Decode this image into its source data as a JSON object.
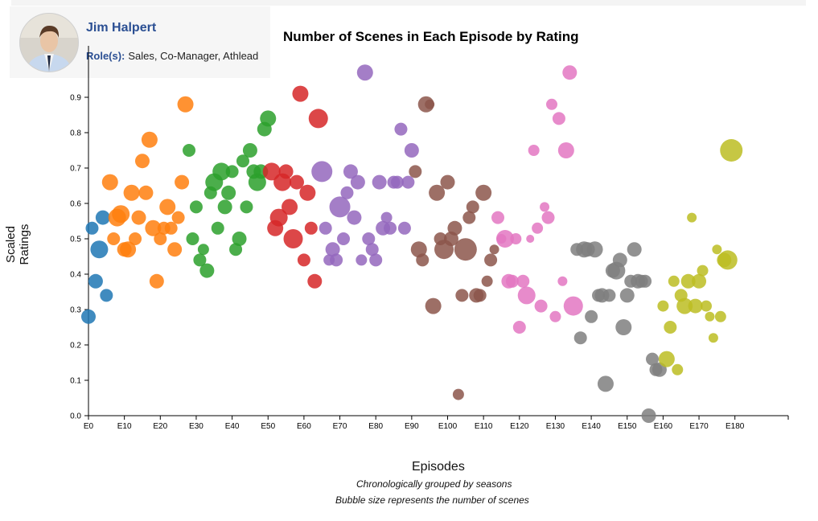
{
  "profile": {
    "name": "Jim Halpert",
    "role_label": "Role(s):",
    "roles": "Sales, Co-Manager, Athlead"
  },
  "chart_data": {
    "type": "scatter",
    "title": "Number of Scenes in Each Episode by Rating",
    "xlabel": "Episodes",
    "ylabel": "Scaled Ratings",
    "notes": [
      "Chronologically grouped by seasons",
      "Bubble size represents the number of scenes"
    ],
    "xlim": [
      0,
      195
    ],
    "ylim": [
      0,
      1.0
    ],
    "x_ticks": [
      0,
      10,
      20,
      30,
      40,
      50,
      60,
      70,
      80,
      90,
      100,
      110,
      120,
      130,
      140,
      150,
      160,
      170,
      180
    ],
    "y_ticks": [
      0,
      0.1,
      0.2,
      0.3,
      0.4,
      0.5,
      0.6,
      0.7,
      0.8,
      0.9
    ],
    "grid": false,
    "series": [
      {
        "color": "#1f77b4",
        "points": [
          [
            0,
            0.28,
            9
          ],
          [
            1,
            0.53,
            8
          ],
          [
            2,
            0.38,
            9
          ],
          [
            3,
            0.47,
            11
          ],
          [
            4,
            0.56,
            9
          ],
          [
            5,
            0.34,
            8
          ]
        ]
      },
      {
        "color": "#ff7f0e",
        "points": [
          [
            6,
            0.66,
            10
          ],
          [
            7,
            0.5,
            8
          ],
          [
            8,
            0.56,
            11
          ],
          [
            9,
            0.57,
            11
          ],
          [
            10,
            0.47,
            9
          ],
          [
            11,
            0.47,
            10
          ],
          [
            12,
            0.63,
            10
          ],
          [
            13,
            0.5,
            8
          ],
          [
            14,
            0.56,
            9
          ],
          [
            15,
            0.72,
            9
          ],
          [
            16,
            0.63,
            9
          ],
          [
            17,
            0.78,
            10
          ],
          [
            18,
            0.53,
            10
          ],
          [
            19,
            0.38,
            9
          ],
          [
            20,
            0.5,
            8
          ],
          [
            21,
            0.53,
            8
          ],
          [
            22,
            0.59,
            10
          ],
          [
            23,
            0.53,
            8
          ],
          [
            24,
            0.47,
            9
          ],
          [
            25,
            0.56,
            8
          ],
          [
            26,
            0.66,
            9
          ],
          [
            27,
            0.88,
            10
          ]
        ]
      },
      {
        "color": "#2ca02c",
        "points": [
          [
            28,
            0.75,
            8
          ],
          [
            29,
            0.5,
            8
          ],
          [
            30,
            0.59,
            8
          ],
          [
            31,
            0.44,
            8
          ],
          [
            32,
            0.47,
            7
          ],
          [
            33,
            0.41,
            9
          ],
          [
            34,
            0.63,
            8
          ],
          [
            35,
            0.66,
            11
          ],
          [
            36,
            0.53,
            8
          ],
          [
            37,
            0.69,
            11
          ],
          [
            38,
            0.59,
            9
          ],
          [
            39,
            0.63,
            9
          ],
          [
            40,
            0.69,
            8
          ],
          [
            41,
            0.47,
            8
          ],
          [
            42,
            0.5,
            9
          ],
          [
            43,
            0.72,
            8
          ],
          [
            44,
            0.59,
            8
          ],
          [
            45,
            0.75,
            9
          ],
          [
            46,
            0.69,
            9
          ],
          [
            47,
            0.66,
            11
          ],
          [
            48,
            0.69,
            9
          ],
          [
            49,
            0.81,
            9
          ],
          [
            50,
            0.84,
            10
          ]
        ]
      },
      {
        "color": "#d62728",
        "points": [
          [
            51,
            0.69,
            11
          ],
          [
            52,
            0.53,
            10
          ],
          [
            53,
            0.56,
            11
          ],
          [
            54,
            0.66,
            11
          ],
          [
            55,
            0.69,
            9
          ],
          [
            56,
            0.59,
            10
          ],
          [
            57,
            0.5,
            12
          ],
          [
            58,
            0.66,
            9
          ],
          [
            59,
            0.91,
            10
          ],
          [
            60,
            0.44,
            8
          ],
          [
            61,
            0.63,
            10
          ],
          [
            62,
            0.53,
            8
          ],
          [
            63,
            0.38,
            9
          ],
          [
            64,
            0.84,
            12
          ]
        ]
      },
      {
        "color": "#9467bd",
        "points": [
          [
            65,
            0.69,
            13
          ],
          [
            66,
            0.53,
            8
          ],
          [
            67,
            0.44,
            7
          ],
          [
            68,
            0.47,
            9
          ],
          [
            69,
            0.44,
            8
          ],
          [
            70,
            0.59,
            13
          ],
          [
            71,
            0.5,
            8
          ],
          [
            72,
            0.63,
            8
          ],
          [
            73,
            0.69,
            9
          ],
          [
            74,
            0.56,
            9
          ],
          [
            75,
            0.66,
            9
          ],
          [
            76,
            0.44,
            7
          ],
          [
            77,
            0.97,
            10
          ],
          [
            78,
            0.5,
            8
          ],
          [
            79,
            0.47,
            8
          ],
          [
            80,
            0.44,
            8
          ],
          [
            81,
            0.66,
            9
          ],
          [
            82,
            0.53,
            9
          ],
          [
            83,
            0.56,
            7
          ],
          [
            84,
            0.53,
            8
          ],
          [
            85,
            0.66,
            8
          ],
          [
            86,
            0.66,
            8
          ],
          [
            87,
            0.81,
            8
          ],
          [
            88,
            0.53,
            8
          ],
          [
            89,
            0.66,
            8
          ],
          [
            90,
            0.75,
            9
          ]
        ]
      },
      {
        "color": "#8c564b",
        "points": [
          [
            91,
            0.69,
            8
          ],
          [
            92,
            0.47,
            10
          ],
          [
            93,
            0.44,
            8
          ],
          [
            94,
            0.88,
            10
          ],
          [
            95,
            0.88,
            6
          ],
          [
            96,
            0.31,
            10
          ],
          [
            97,
            0.63,
            10
          ],
          [
            98,
            0.5,
            8
          ],
          [
            99,
            0.47,
            12
          ],
          [
            100,
            0.66,
            9
          ],
          [
            101,
            0.5,
            9
          ],
          [
            102,
            0.53,
            9
          ],
          [
            103,
            0.06,
            7
          ],
          [
            104,
            0.34,
            8
          ],
          [
            105,
            0.47,
            14
          ],
          [
            106,
            0.56,
            8
          ],
          [
            107,
            0.59,
            8
          ],
          [
            108,
            0.34,
            9
          ],
          [
            109,
            0.34,
            8
          ],
          [
            110,
            0.63,
            10
          ],
          [
            111,
            0.38,
            7
          ],
          [
            112,
            0.44,
            8
          ],
          [
            113,
            0.47,
            6
          ]
        ]
      },
      {
        "color": "#e377c2",
        "points": [
          [
            114,
            0.56,
            8
          ],
          [
            115,
            0.5,
            6
          ],
          [
            116,
            0.5,
            11
          ],
          [
            117,
            0.38,
            9
          ],
          [
            118,
            0.38,
            8
          ],
          [
            119,
            0.5,
            7
          ],
          [
            120,
            0.25,
            8
          ],
          [
            121,
            0.38,
            8
          ],
          [
            122,
            0.34,
            11
          ],
          [
            123,
            0.5,
            5
          ],
          [
            124,
            0.75,
            7
          ],
          [
            125,
            0.53,
            7
          ],
          [
            126,
            0.31,
            8
          ],
          [
            127,
            0.59,
            6
          ],
          [
            128,
            0.56,
            8
          ],
          [
            129,
            0.88,
            7
          ],
          [
            130,
            0.28,
            7
          ],
          [
            131,
            0.84,
            8
          ],
          [
            132,
            0.38,
            6
          ],
          [
            133,
            0.75,
            10
          ],
          [
            134,
            0.97,
            9
          ],
          [
            135,
            0.31,
            12
          ]
        ]
      },
      {
        "color": "#7f7f7f",
        "points": [
          [
            136,
            0.47,
            8
          ],
          [
            137,
            0.22,
            8
          ],
          [
            138,
            0.47,
            10
          ],
          [
            139,
            0.47,
            9
          ],
          [
            140,
            0.28,
            8
          ],
          [
            141,
            0.47,
            10
          ],
          [
            142,
            0.34,
            8
          ],
          [
            143,
            0.34,
            9
          ],
          [
            144,
            0.09,
            10
          ],
          [
            145,
            0.34,
            8
          ],
          [
            146,
            0.41,
            9
          ],
          [
            147,
            0.41,
            11
          ],
          [
            148,
            0.44,
            9
          ],
          [
            149,
            0.25,
            10
          ],
          [
            150,
            0.34,
            9
          ],
          [
            151,
            0.38,
            8
          ],
          [
            152,
            0.47,
            9
          ],
          [
            153,
            0.38,
            9
          ],
          [
            154,
            0.38,
            8
          ],
          [
            155,
            0.38,
            8
          ],
          [
            156,
            0.0,
            9
          ],
          [
            157,
            0.16,
            8
          ],
          [
            158,
            0.13,
            8
          ],
          [
            159,
            0.13,
            9
          ]
        ]
      },
      {
        "color": "#bcbd22",
        "points": [
          [
            160,
            0.31,
            7
          ],
          [
            161,
            0.16,
            10
          ],
          [
            162,
            0.25,
            8
          ],
          [
            163,
            0.38,
            7
          ],
          [
            164,
            0.13,
            7
          ],
          [
            165,
            0.34,
            8
          ],
          [
            166,
            0.31,
            10
          ],
          [
            167,
            0.38,
            9
          ],
          [
            168,
            0.56,
            6
          ],
          [
            169,
            0.31,
            9
          ],
          [
            170,
            0.38,
            9
          ],
          [
            171,
            0.41,
            7
          ],
          [
            172,
            0.31,
            7
          ],
          [
            173,
            0.28,
            6
          ],
          [
            174,
            0.22,
            6
          ],
          [
            175,
            0.47,
            6
          ],
          [
            176,
            0.28,
            7
          ],
          [
            177,
            0.44,
            9
          ],
          [
            178,
            0.44,
            12
          ],
          [
            179,
            0.75,
            14
          ]
        ]
      }
    ]
  }
}
